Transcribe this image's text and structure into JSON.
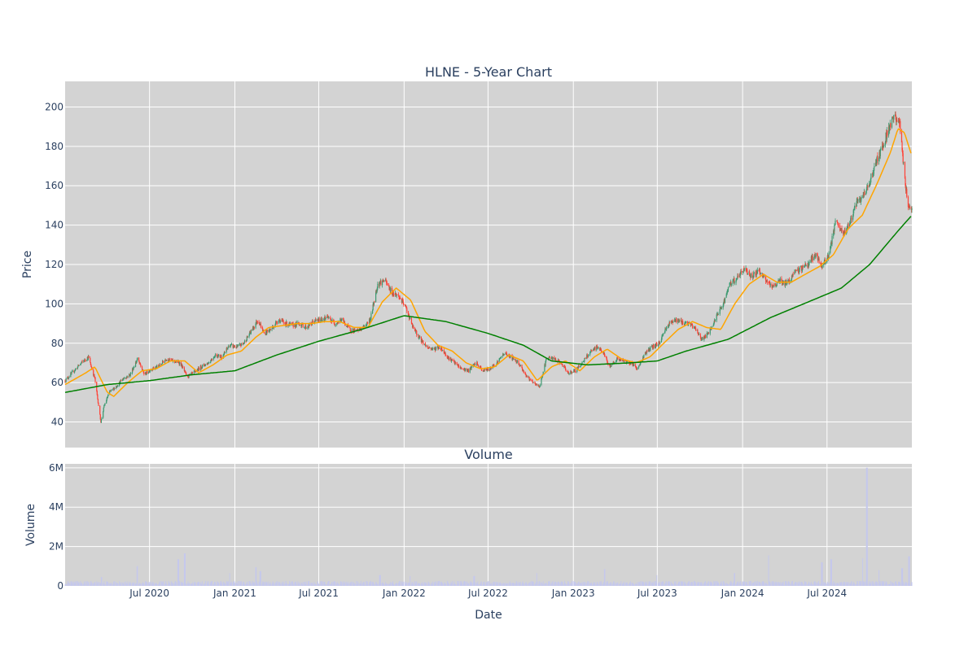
{
  "chart_data": {
    "type": "candlestick",
    "title": "HLNE - 5-Year Chart",
    "price_panel": {
      "ylabel": "Price",
      "yticks": [
        40,
        60,
        80,
        100,
        120,
        140,
        160,
        180,
        200
      ],
      "ylim": [
        27,
        213
      ],
      "grid": true,
      "background": "#d3d3d3",
      "candle_up_color": "#3d9970",
      "candle_down_color": "#ff4136",
      "series": [
        {
          "kind": "close",
          "points": [
            [
              "2020-01-01",
              61
            ],
            [
              "2020-01-20",
              66
            ],
            [
              "2020-02-05",
              70
            ],
            [
              "2020-02-20",
              73
            ],
            [
              "2020-03-05",
              62
            ],
            [
              "2020-03-18",
              40
            ],
            [
              "2020-03-25",
              48
            ],
            [
              "2020-04-05",
              55
            ],
            [
              "2020-04-20",
              58
            ],
            [
              "2020-05-05",
              62
            ],
            [
              "2020-05-20",
              64
            ],
            [
              "2020-06-05",
              72
            ],
            [
              "2020-06-20",
              64
            ],
            [
              "2020-07-05",
              67
            ],
            [
              "2020-07-20",
              68
            ],
            [
              "2020-08-05",
              72
            ],
            [
              "2020-08-20",
              71
            ],
            [
              "2020-09-05",
              70
            ],
            [
              "2020-09-20",
              63
            ],
            [
              "2020-10-05",
              65
            ],
            [
              "2020-10-20",
              68
            ],
            [
              "2020-11-05",
              70
            ],
            [
              "2020-11-20",
              74
            ],
            [
              "2020-12-05",
              73
            ],
            [
              "2020-12-20",
              79
            ],
            [
              "2021-01-05",
              78
            ],
            [
              "2021-01-20",
              80
            ],
            [
              "2021-02-05",
              86
            ],
            [
              "2021-02-20",
              92
            ],
            [
              "2021-03-05",
              85
            ],
            [
              "2021-03-20",
              87
            ],
            [
              "2021-04-05",
              92
            ],
            [
              "2021-04-20",
              90
            ],
            [
              "2021-05-05",
              89
            ],
            [
              "2021-05-20",
              90
            ],
            [
              "2021-06-05",
              88
            ],
            [
              "2021-06-20",
              91
            ],
            [
              "2021-07-05",
              92
            ],
            [
              "2021-07-20",
              93
            ],
            [
              "2021-08-05",
              90
            ],
            [
              "2021-08-20",
              92
            ],
            [
              "2021-09-05",
              87
            ],
            [
              "2021-09-20",
              86
            ],
            [
              "2021-10-05",
              88
            ],
            [
              "2021-10-20",
              92
            ],
            [
              "2021-11-05",
              110
            ],
            [
              "2021-11-20",
              112
            ],
            [
              "2021-12-05",
              106
            ],
            [
              "2021-12-20",
              104
            ],
            [
              "2022-01-05",
              98
            ],
            [
              "2022-01-20",
              88
            ],
            [
              "2022-02-05",
              82
            ],
            [
              "2022-02-20",
              78
            ],
            [
              "2022-03-05",
              77
            ],
            [
              "2022-03-20",
              78
            ],
            [
              "2022-04-05",
              73
            ],
            [
              "2022-04-20",
              70
            ],
            [
              "2022-05-05",
              67
            ],
            [
              "2022-05-20",
              66
            ],
            [
              "2022-06-05",
              70
            ],
            [
              "2022-06-20",
              66
            ],
            [
              "2022-07-05",
              67
            ],
            [
              "2022-07-20",
              70
            ],
            [
              "2022-08-05",
              75
            ],
            [
              "2022-08-20",
              73
            ],
            [
              "2022-09-05",
              70
            ],
            [
              "2022-09-20",
              64
            ],
            [
              "2022-10-05",
              60
            ],
            [
              "2022-10-20",
              58
            ],
            [
              "2022-11-05",
              73
            ],
            [
              "2022-11-20",
              72
            ],
            [
              "2022-12-05",
              70
            ],
            [
              "2022-12-20",
              65
            ],
            [
              "2023-01-05",
              66
            ],
            [
              "2023-01-20",
              70
            ],
            [
              "2023-02-05",
              75
            ],
            [
              "2023-02-20",
              78
            ],
            [
              "2023-03-05",
              76
            ],
            [
              "2023-03-20",
              68
            ],
            [
              "2023-04-05",
              72
            ],
            [
              "2023-04-20",
              71
            ],
            [
              "2023-05-05",
              70
            ],
            [
              "2023-05-20",
              67
            ],
            [
              "2023-06-05",
              75
            ],
            [
              "2023-06-20",
              78
            ],
            [
              "2023-07-05",
              80
            ],
            [
              "2023-07-20",
              88
            ],
            [
              "2023-08-05",
              92
            ],
            [
              "2023-08-20",
              91
            ],
            [
              "2023-09-05",
              90
            ],
            [
              "2023-09-20",
              88
            ],
            [
              "2023-10-05",
              82
            ],
            [
              "2023-10-20",
              85
            ],
            [
              "2023-11-05",
              93
            ],
            [
              "2023-11-20",
              100
            ],
            [
              "2023-12-05",
              110
            ],
            [
              "2023-12-20",
              113
            ],
            [
              "2024-01-05",
              118
            ],
            [
              "2024-01-20",
              114
            ],
            [
              "2024-02-05",
              117
            ],
            [
              "2024-02-20",
              112
            ],
            [
              "2024-03-05",
              108
            ],
            [
              "2024-03-20",
              112
            ],
            [
              "2024-04-05",
              110
            ],
            [
              "2024-04-20",
              115
            ],
            [
              "2024-05-05",
              118
            ],
            [
              "2024-05-20",
              120
            ],
            [
              "2024-06-05",
              125
            ],
            [
              "2024-06-20",
              119
            ],
            [
              "2024-07-05",
              125
            ],
            [
              "2024-07-20",
              142
            ],
            [
              "2024-08-05",
              135
            ],
            [
              "2024-08-20",
              142
            ],
            [
              "2024-09-05",
              152
            ],
            [
              "2024-09-20",
              155
            ],
            [
              "2024-10-05",
              165
            ],
            [
              "2024-10-20",
              175
            ],
            [
              "2024-11-05",
              185
            ],
            [
              "2024-11-20",
              195
            ],
            [
              "2024-12-05",
              192
            ],
            [
              "2024-12-15",
              165
            ],
            [
              "2024-12-22",
              150
            ],
            [
              "2024-12-31",
              149
            ]
          ]
        },
        {
          "kind": "moving-average",
          "color": "#ffa500",
          "points": [
            [
              "2020-01-01",
              59
            ],
            [
              "2020-02-15",
              65
            ],
            [
              "2020-03-05",
              68
            ],
            [
              "2020-04-01",
              55
            ],
            [
              "2020-04-15",
              53
            ],
            [
              "2020-05-15",
              60
            ],
            [
              "2020-06-15",
              66
            ],
            [
              "2020-07-15",
              67
            ],
            [
              "2020-08-15",
              71
            ],
            [
              "2020-09-15",
              71
            ],
            [
              "2020-10-15",
              65
            ],
            [
              "2020-11-15",
              69
            ],
            [
              "2020-12-15",
              74
            ],
            [
              "2021-01-15",
              76
            ],
            [
              "2021-02-15",
              83
            ],
            [
              "2021-03-15",
              88
            ],
            [
              "2021-04-15",
              89
            ],
            [
              "2021-05-15",
              90
            ],
            [
              "2021-06-15",
              90
            ],
            [
              "2021-07-15",
              91
            ],
            [
              "2021-08-15",
              91
            ],
            [
              "2021-09-15",
              88
            ],
            [
              "2021-10-15",
              88
            ],
            [
              "2021-11-15",
              101
            ],
            [
              "2021-12-15",
              108
            ],
            [
              "2022-01-15",
              102
            ],
            [
              "2022-02-15",
              86
            ],
            [
              "2022-03-15",
              79
            ],
            [
              "2022-04-15",
              76
            ],
            [
              "2022-05-15",
              70
            ],
            [
              "2022-06-15",
              67
            ],
            [
              "2022-07-15",
              68
            ],
            [
              "2022-08-15",
              74
            ],
            [
              "2022-09-15",
              71
            ],
            [
              "2022-10-15",
              61
            ],
            [
              "2022-11-15",
              68
            ],
            [
              "2022-12-15",
              71
            ],
            [
              "2023-01-15",
              66
            ],
            [
              "2023-02-15",
              73
            ],
            [
              "2023-03-15",
              77
            ],
            [
              "2023-04-15",
              72
            ],
            [
              "2023-05-15",
              70
            ],
            [
              "2023-06-15",
              73
            ],
            [
              "2023-07-15",
              80
            ],
            [
              "2023-08-15",
              87
            ],
            [
              "2023-09-15",
              91
            ],
            [
              "2023-10-15",
              88
            ],
            [
              "2023-11-15",
              87
            ],
            [
              "2023-12-15",
              100
            ],
            [
              "2024-01-15",
              110
            ],
            [
              "2024-02-15",
              115
            ],
            [
              "2024-03-15",
              111
            ],
            [
              "2024-04-15",
              111
            ],
            [
              "2024-05-15",
              115
            ],
            [
              "2024-06-15",
              119
            ],
            [
              "2024-07-15",
              125
            ],
            [
              "2024-08-15",
              138
            ],
            [
              "2024-09-15",
              145
            ],
            [
              "2024-10-15",
              160
            ],
            [
              "2024-11-15",
              177
            ],
            [
              "2024-12-01",
              189
            ],
            [
              "2024-12-15",
              187
            ],
            [
              "2024-12-31",
              175
            ]
          ]
        },
        {
          "kind": "moving-average",
          "color": "#008000",
          "points": [
            [
              "2020-01-01",
              55
            ],
            [
              "2020-04-01",
              59
            ],
            [
              "2020-07-01",
              61
            ],
            [
              "2020-10-01",
              64
            ],
            [
              "2021-01-01",
              66
            ],
            [
              "2021-04-01",
              74
            ],
            [
              "2021-07-01",
              81
            ],
            [
              "2021-10-01",
              87
            ],
            [
              "2022-01-01",
              94
            ],
            [
              "2022-04-01",
              91
            ],
            [
              "2022-07-01",
              85
            ],
            [
              "2022-09-15",
              79
            ],
            [
              "2022-11-15",
              71
            ],
            [
              "2023-02-01",
              69
            ],
            [
              "2023-05-01",
              70
            ],
            [
              "2023-07-01",
              71
            ],
            [
              "2023-09-01",
              76
            ],
            [
              "2023-12-01",
              82
            ],
            [
              "2024-03-01",
              93
            ],
            [
              "2024-06-01",
              102
            ],
            [
              "2024-08-01",
              108
            ],
            [
              "2024-10-01",
              120
            ],
            [
              "2024-12-01",
              137
            ],
            [
              "2024-12-31",
              145
            ]
          ]
        }
      ]
    },
    "volume_panel": {
      "title": "Volume",
      "ylabel": "Volume",
      "xlabel": "Date",
      "yticks": [
        0,
        2000000,
        4000000,
        6000000
      ],
      "ytick_labels": [
        "0",
        "2M",
        "4M",
        "6M"
      ],
      "ylim": [
        0,
        6200000
      ],
      "grid": true,
      "background": "#d3d3d3",
      "bar_color": "#c5c8ec",
      "baseline_volume": 180000,
      "spikes": [
        [
          "2020-03-20",
          450000
        ],
        [
          "2020-06-05",
          1000000
        ],
        [
          "2020-09-01",
          1350000
        ],
        [
          "2020-09-15",
          1650000
        ],
        [
          "2020-12-20",
          650000
        ],
        [
          "2021-02-15",
          950000
        ],
        [
          "2021-02-25",
          750000
        ],
        [
          "2021-11-10",
          550000
        ],
        [
          "2022-01-15",
          500000
        ],
        [
          "2022-06-01",
          500000
        ],
        [
          "2022-10-15",
          650000
        ],
        [
          "2023-03-10",
          850000
        ],
        [
          "2023-07-01",
          550000
        ],
        [
          "2023-12-15",
          650000
        ],
        [
          "2024-02-25",
          1550000
        ],
        [
          "2024-06-20",
          1200000
        ],
        [
          "2024-07-10",
          1350000
        ],
        [
          "2024-09-15",
          1400000
        ],
        [
          "2024-09-25",
          6000000
        ],
        [
          "2024-10-20",
          800000
        ],
        [
          "2024-12-10",
          900000
        ],
        [
          "2024-12-25",
          1500000
        ]
      ]
    },
    "xlim": [
      "2020-01-01",
      "2024-12-31"
    ],
    "xticks": [
      "2020-07-01",
      "2021-01-01",
      "2021-07-01",
      "2022-01-01",
      "2022-07-01",
      "2023-01-01",
      "2023-07-01",
      "2024-01-01",
      "2024-07-01"
    ],
    "xtick_labels": [
      "Jul 2020",
      "Jan 2021",
      "Jul 2021",
      "Jan 2022",
      "Jul 2022",
      "Jan 2023",
      "Jul 2023",
      "Jan 2024",
      "Jul 2024"
    ]
  }
}
